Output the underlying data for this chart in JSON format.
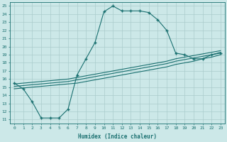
{
  "xlabel": "Humidex (Indice chaleur)",
  "bg_color": "#cce8e8",
  "grid_color": "#aacccc",
  "line_color": "#1a7070",
  "xlim": [
    -0.5,
    23.5
  ],
  "ylim": [
    10.5,
    25.5
  ],
  "xticks": [
    0,
    1,
    2,
    3,
    4,
    5,
    6,
    7,
    8,
    9,
    10,
    11,
    12,
    13,
    14,
    15,
    16,
    17,
    18,
    19,
    20,
    21,
    22,
    23
  ],
  "yticks": [
    11,
    12,
    13,
    14,
    15,
    16,
    17,
    18,
    19,
    20,
    21,
    22,
    23,
    24,
    25
  ],
  "line1_x": [
    0,
    1,
    2,
    3,
    4,
    5,
    6,
    7,
    8,
    9,
    10,
    11,
    12,
    13,
    14,
    15,
    16,
    17,
    18,
    19,
    20,
    21,
    22,
    23
  ],
  "line1_y": [
    15.5,
    14.8,
    13.2,
    11.2,
    11.2,
    11.2,
    12.3,
    16.5,
    18.5,
    20.5,
    24.3,
    25.0,
    24.4,
    24.4,
    24.4,
    24.2,
    23.3,
    22.0,
    19.2,
    19.0,
    18.5,
    18.5,
    19.0,
    19.2
  ],
  "line2_x": [
    0,
    1,
    2,
    3,
    4,
    5,
    6,
    7,
    8,
    9,
    10,
    11,
    12,
    13,
    14,
    15,
    16,
    17,
    18,
    19,
    20,
    21,
    22,
    23
  ],
  "line2_y": [
    14.8,
    14.9,
    15.0,
    15.1,
    15.2,
    15.3,
    15.4,
    15.5,
    15.7,
    15.9,
    16.1,
    16.3,
    16.5,
    16.7,
    16.9,
    17.1,
    17.3,
    17.5,
    17.8,
    18.0,
    18.2,
    18.5,
    18.7,
    19.0
  ],
  "line3_x": [
    0,
    1,
    2,
    3,
    4,
    5,
    6,
    7,
    8,
    9,
    10,
    11,
    12,
    13,
    14,
    15,
    16,
    17,
    18,
    19,
    20,
    21,
    22,
    23
  ],
  "line3_y": [
    15.1,
    15.2,
    15.3,
    15.4,
    15.5,
    15.6,
    15.7,
    15.9,
    16.1,
    16.3,
    16.5,
    16.7,
    16.9,
    17.1,
    17.3,
    17.5,
    17.7,
    17.9,
    18.2,
    18.4,
    18.6,
    18.8,
    19.0,
    19.3
  ],
  "line4_x": [
    0,
    1,
    2,
    3,
    4,
    5,
    6,
    7,
    8,
    9,
    10,
    11,
    12,
    13,
    14,
    15,
    16,
    17,
    18,
    19,
    20,
    21,
    22,
    23
  ],
  "line4_y": [
    15.4,
    15.5,
    15.6,
    15.7,
    15.8,
    15.9,
    16.0,
    16.2,
    16.4,
    16.6,
    16.8,
    17.0,
    17.2,
    17.4,
    17.6,
    17.8,
    18.0,
    18.2,
    18.5,
    18.7,
    18.9,
    19.1,
    19.3,
    19.5
  ]
}
